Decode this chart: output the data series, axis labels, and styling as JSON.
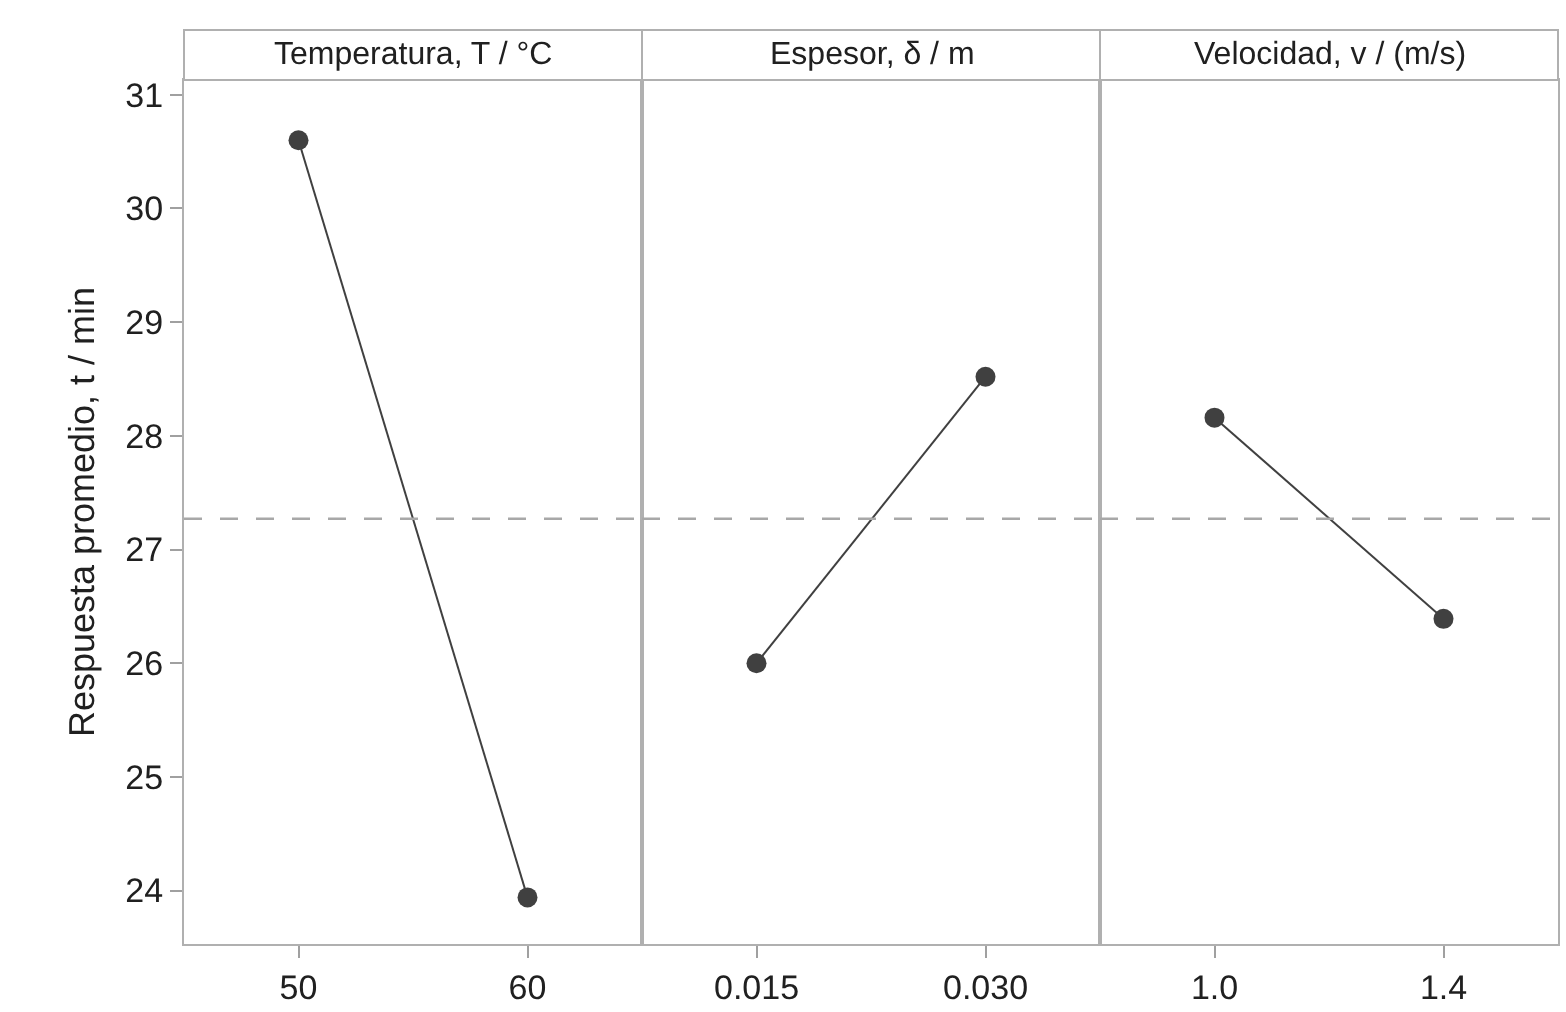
{
  "chart_data": [
    {
      "type": "line",
      "title": "Temperatura, T / °C",
      "ylabel": "Respuesta promedio, t / min",
      "categories": [
        "50",
        "60"
      ],
      "series": [
        {
          "color": "#404040",
          "values": [
            30.6,
            23.94
          ]
        }
      ],
      "ylim": [
        23.53,
        31.13
      ],
      "yticks": [
        24,
        25,
        26,
        27,
        28,
        29,
        30,
        31
      ],
      "marker": "circle",
      "ref_lines": [
        {
          "axis": "y",
          "value": 27.27,
          "color": "#a8a8a8",
          "line_style": "dashed"
        }
      ]
    },
    {
      "type": "line",
      "title": "Espesor, δ / m",
      "categories": [
        "0.015",
        "0.030"
      ],
      "series": [
        {
          "color": "#404040",
          "values": [
            26.0,
            28.52
          ]
        }
      ],
      "ylim": [
        23.53,
        31.13
      ],
      "tick_labels": "x",
      "marker": "circle",
      "ref_lines": [
        {
          "axis": "y",
          "value": 27.27,
          "color": "#a8a8a8",
          "line_style": "dashed"
        }
      ]
    },
    {
      "type": "line",
      "title": "Velocidad, v / (m/s)",
      "categories": [
        "1.0",
        "1.4"
      ],
      "series": [
        {
          "color": "#404040",
          "values": [
            28.16,
            26.39
          ]
        }
      ],
      "ylim": [
        23.53,
        31.13
      ],
      "tick_labels": "x",
      "marker": "circle",
      "ref_lines": [
        {
          "axis": "y",
          "value": 27.27,
          "color": "#a8a8a8",
          "line_style": "dashed"
        }
      ]
    }
  ]
}
